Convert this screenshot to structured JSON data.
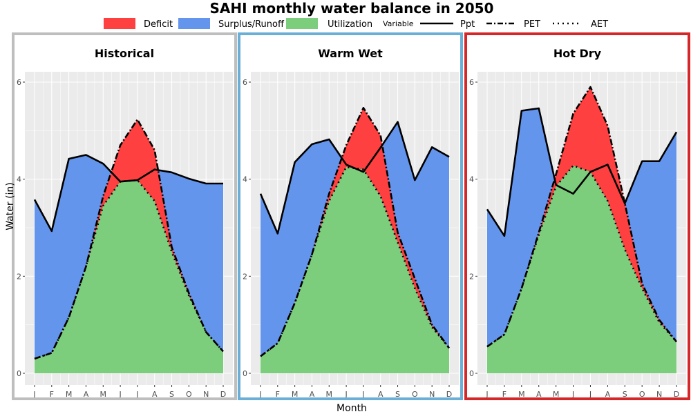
{
  "chart_data": {
    "type": "area",
    "title": "SAHI monthly water balance in 2050",
    "xlabel": "Month",
    "ylabel": "Water (in)",
    "ylim": [
      0,
      6
    ],
    "yticks": [
      "0",
      "2",
      "4",
      "6"
    ],
    "categories": [
      "J",
      "F",
      "M",
      "A",
      "M",
      "J",
      "J",
      "A",
      "S",
      "O",
      "N",
      "D"
    ],
    "legend": {
      "placement": "top",
      "fill_title": "",
      "fill_items": [
        {
          "label": "Deficit",
          "color": "#ff4040"
        },
        {
          "label": "Surplus/Runoff",
          "color": "#6495ed"
        },
        {
          "label": "Utilization",
          "color": "#7ccd7c"
        }
      ],
      "line_title": "Variable",
      "line_items": [
        {
          "label": "Ppt",
          "style": "solid"
        },
        {
          "label": "PET",
          "style": "dashdot"
        },
        {
          "label": "AET",
          "style": "dotted"
        }
      ]
    },
    "colors": {
      "deficit": "#ff4040",
      "surplus": "#6495ed",
      "utilization": "#7ccd7c",
      "panel_bg": "#ebebeb",
      "grid": "#ffffff"
    },
    "panels": [
      {
        "title": "Historical",
        "border_color": "#bebebe",
        "ppt": [
          3.58,
          2.93,
          4.42,
          4.5,
          4.32,
          3.95,
          3.98,
          4.2,
          4.14,
          4.01,
          3.91,
          3.91
        ],
        "pet": [
          0.3,
          0.42,
          1.15,
          2.2,
          3.65,
          4.7,
          5.23,
          4.6,
          2.6,
          1.65,
          0.85,
          0.45
        ],
        "aet": [
          0.3,
          0.42,
          1.15,
          2.2,
          3.45,
          3.95,
          3.98,
          3.55,
          2.5,
          1.6,
          0.85,
          0.45
        ]
      },
      {
        "title": "Warm Wet",
        "border_color": "#6baed6",
        "ppt": [
          3.7,
          2.88,
          4.35,
          4.72,
          4.82,
          4.3,
          4.15,
          4.65,
          5.18,
          3.98,
          4.66,
          4.46
        ],
        "pet": [
          0.35,
          0.62,
          1.45,
          2.45,
          3.7,
          4.7,
          5.47,
          4.9,
          2.9,
          1.95,
          1.0,
          0.52
        ],
        "aet": [
          0.35,
          0.62,
          1.45,
          2.45,
          3.55,
          4.25,
          4.2,
          3.65,
          2.7,
          1.75,
          0.95,
          0.52
        ]
      },
      {
        "title": "Hot Dry",
        "border_color": "#d62728",
        "ppt": [
          3.38,
          2.83,
          5.41,
          5.46,
          3.88,
          3.7,
          4.15,
          4.3,
          3.5,
          4.37,
          4.37,
          4.97
        ],
        "pet": [
          0.55,
          0.8,
          1.75,
          2.9,
          4.1,
          5.35,
          5.9,
          5.1,
          3.5,
          1.85,
          1.1,
          0.65
        ],
        "aet": [
          0.55,
          0.8,
          1.75,
          2.85,
          3.85,
          4.28,
          4.15,
          3.55,
          2.55,
          1.75,
          1.05,
          0.65
        ]
      }
    ]
  }
}
